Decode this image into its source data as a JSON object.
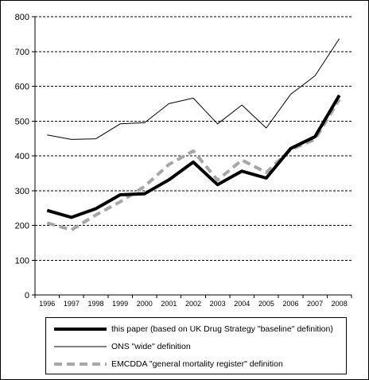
{
  "chart_data": {
    "type": "line",
    "title": "",
    "xlabel": "",
    "ylabel": "",
    "x": [
      "1996",
      "1997",
      "1998",
      "1999",
      "2000",
      "2001",
      "2002",
      "2003",
      "2004",
      "2005",
      "2006",
      "2007",
      "2008"
    ],
    "ylim": [
      0,
      800
    ],
    "yticks": [
      "0",
      "100",
      "200",
      "300",
      "400",
      "500",
      "600",
      "700",
      "800"
    ],
    "grid": "horizontal dashed",
    "legend_position": "bottom",
    "series": [
      {
        "name": "this paper (based on UK Drug Strategy \"baseline\" definition)",
        "values": [
          243,
          223,
          248,
          288,
          291,
          331,
          382,
          317,
          356,
          336,
          421,
          455,
          574
        ],
        "color": "#000000",
        "style": "solid-thick"
      },
      {
        "name": "ONS \"wide\" definition",
        "values": [
          460,
          447,
          449,
          492,
          495,
          550,
          566,
          492,
          546,
          480,
          577,
          630,
          737
        ],
        "color": "#000000",
        "style": "solid-thin"
      },
      {
        "name": "EMCDDA \"general mortality register\" definition",
        "values": [
          207,
          187,
          230,
          268,
          312,
          375,
          414,
          330,
          388,
          352,
          418,
          447,
          562
        ],
        "color": "#a6a6a6",
        "style": "dashed-thick"
      }
    ]
  }
}
